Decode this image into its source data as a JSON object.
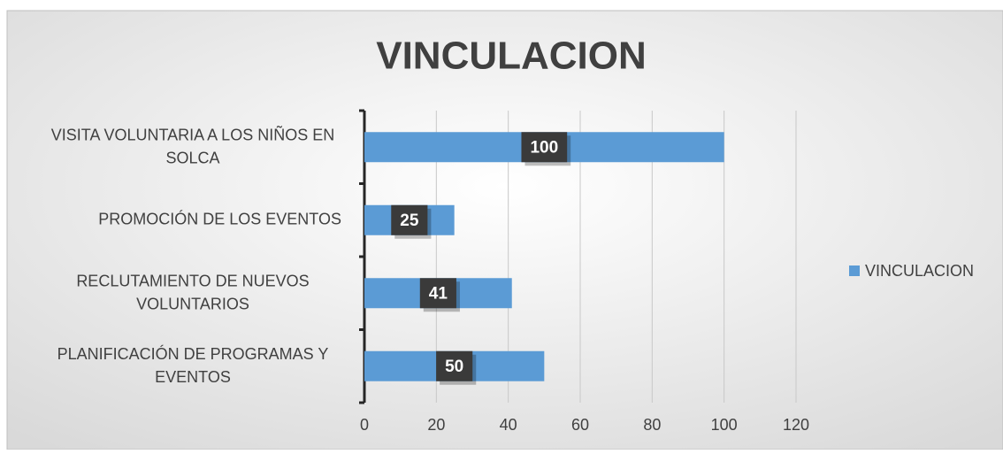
{
  "chart_data": {
    "type": "bar",
    "orientation": "horizontal",
    "title": "VINCULACION",
    "categories": [
      "VISITA VOLUNTARIA A LOS NIÑOS EN SOLCA",
      "PROMOCIÓN DE LOS EVENTOS",
      "RECLUTAMIENTO DE NUEVOS VOLUNTARIOS",
      "PLANIFICACIÓN DE PROGRAMAS Y EVENTOS"
    ],
    "series": [
      {
        "name": "VINCULACION",
        "color": "#5b9bd5",
        "values": [
          100,
          25,
          41,
          50
        ]
      }
    ],
    "xlim": [
      0,
      120
    ],
    "xticks": [
      0,
      20,
      40,
      60,
      80,
      100,
      120
    ],
    "grid": true,
    "legend": "right"
  }
}
